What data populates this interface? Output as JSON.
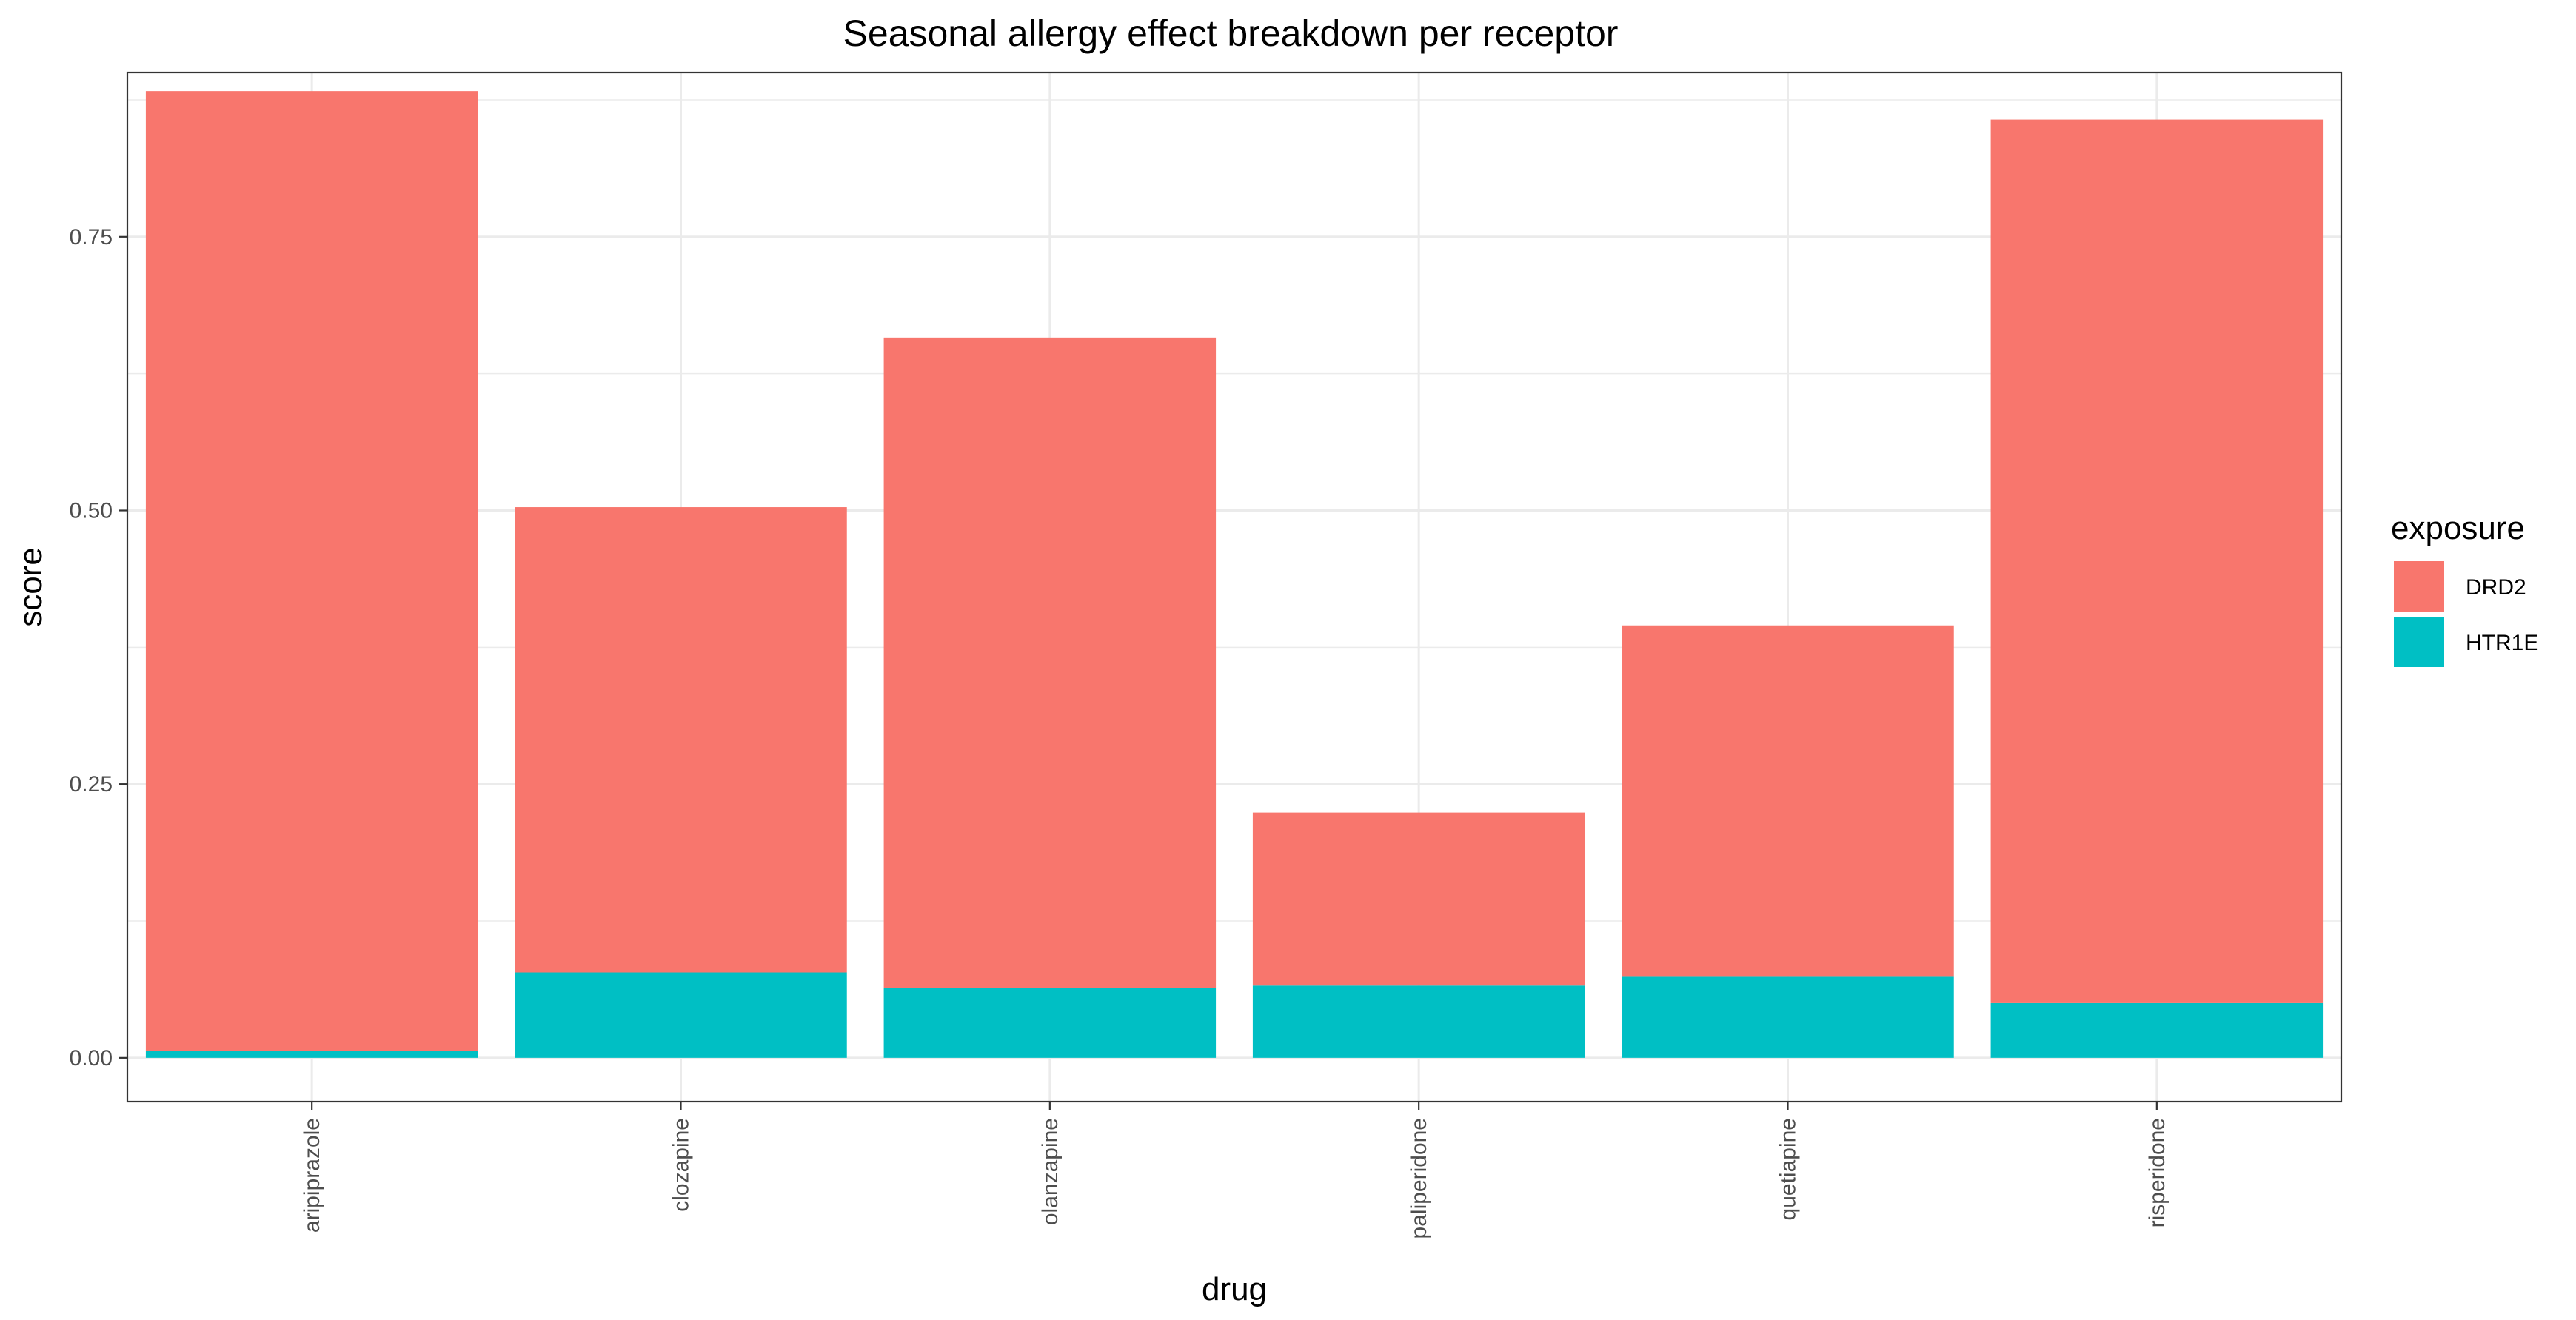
{
  "chart_data": {
    "type": "bar",
    "stacked": true,
    "title": "Seasonal allergy effect breakdown per receptor",
    "xlabel": "drug",
    "ylabel": "score",
    "categories": [
      "aripiprazole",
      "clozapine",
      "olanzapine",
      "paliperidone",
      "quetiapine",
      "risperidone"
    ],
    "series": [
      {
        "name": "DRD2",
        "color": "#F8766D",
        "values": [
          0.877,
          0.425,
          0.594,
          0.158,
          0.321,
          0.807
        ]
      },
      {
        "name": "HTR1E",
        "color": "#00BFC4",
        "values": [
          0.006,
          0.078,
          0.064,
          0.066,
          0.074,
          0.05
        ]
      }
    ],
    "stack_order_bottom_to_top": [
      "HTR1E",
      "DRD2"
    ],
    "ylim": [
      -0.04,
      0.9
    ],
    "y_ticks": [
      0.0,
      0.25,
      0.5,
      0.75
    ],
    "y_tick_labels": [
      "0.00",
      "0.25",
      "0.50",
      "0.75"
    ],
    "x_tick_rotation": "vertical",
    "grid": true,
    "legend": {
      "title": "exposure",
      "position": "right",
      "entries": [
        "DRD2",
        "HTR1E"
      ]
    }
  }
}
